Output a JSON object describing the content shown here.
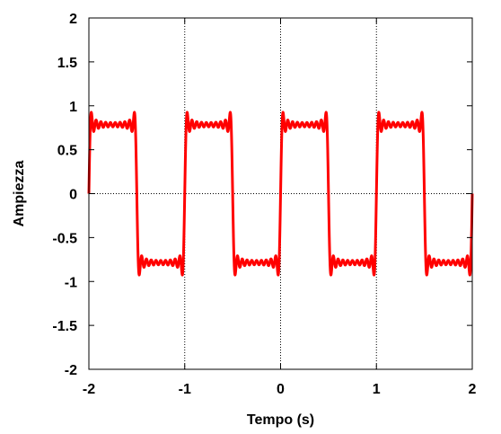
{
  "chart_data": {
    "type": "line",
    "title": "",
    "xlabel": "Tempo (s)",
    "ylabel": "Ampiezza",
    "xlim": [
      -2,
      2
    ],
    "ylim": [
      -2,
      2
    ],
    "x_ticks": [
      -2,
      -1,
      0,
      1,
      2
    ],
    "x_tick_labels": [
      "-2",
      "-1",
      "0",
      "1",
      "2"
    ],
    "y_ticks": [
      -2,
      -1.5,
      -1,
      -0.5,
      0,
      0.5,
      1,
      1.5,
      2
    ],
    "y_tick_labels": [
      "-2",
      "-1.5",
      "-1",
      "-0.5",
      "0",
      "0.5",
      "1",
      "1.5",
      "2"
    ],
    "grid_x_values": [
      -1,
      0,
      1
    ],
    "grid_y_values": [
      0
    ],
    "series": [
      {
        "color": "#ff0000",
        "approximates": "square wave, period 1 s, level ±0.785, Fourier partial sum with ripple",
        "period": 1,
        "level": 0.785,
        "harmonics": 19,
        "x_start": -2,
        "x_end": 2
      }
    ]
  }
}
